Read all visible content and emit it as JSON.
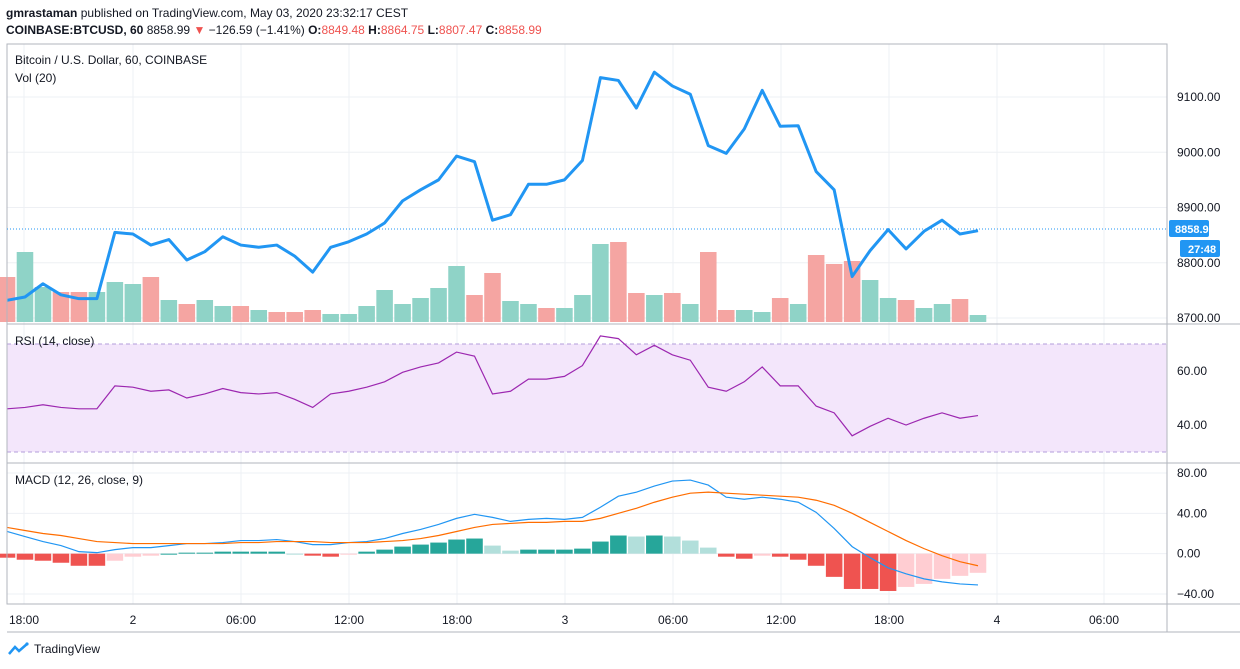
{
  "header": {
    "user": "gmrastaman",
    "published_text": "published on TradingView.com, May 03, 2020 23:32:17 CEST",
    "symbol": "COINBASE:BTCUSD, 60",
    "last": "8858.99",
    "change_arrow": "▼",
    "change": "−126.59 (−1.41%)",
    "o_label": "O:",
    "o_value": "8849.48",
    "h_label": "H:",
    "h_value": "8864.75",
    "l_label": "L:",
    "l_value": "8807.47",
    "c_label": "C:",
    "c_value": "8858.99"
  },
  "pane_labels": {
    "main_title": "Bitcoin / U.S. Dollar, 60, COINBASE",
    "vol": "Vol (20)",
    "rsi": "RSI (14, close)",
    "macd": "MACD (12, 26, close, 9)"
  },
  "price_tag": {
    "value": "8858.99",
    "countdown": "27:48"
  },
  "footer": {
    "brand": "TradingView"
  },
  "colors": {
    "price_line": "#2196f3",
    "up_volume": "#8fd3c7",
    "down_volume": "#f5a5a2",
    "rsi_line": "#9c27b0",
    "rsi_band": "#f3e6fb",
    "macd_line": "#2196f3",
    "signal_line": "#ff6d00",
    "hist_pos_strong": "#26a69a",
    "hist_pos_weak": "#b2dfdb",
    "hist_neg_strong": "#ef5350",
    "hist_neg_weak": "#ffcdd2",
    "tag_bg": "#2196f3"
  },
  "chart_data": [
    {
      "type": "line",
      "title": "Bitcoin / U.S. Dollar, 60, COINBASE",
      "time_axis_labels": [
        "18:00",
        "2",
        "06:00",
        "12:00",
        "18:00",
        "3",
        "06:00",
        "12:00",
        "18:00",
        "4",
        "06:00"
      ],
      "y_ticks": [
        "9100.00",
        "9000.00",
        "8900.00",
        "8800.00",
        "8700.00"
      ],
      "ylim": [
        8700,
        9100
      ],
      "last_price": 8858.99,
      "series": [
        {
          "name": "close",
          "values": [
            8732,
            8738,
            8762,
            8742,
            8735,
            8735,
            8855,
            8852,
            8832,
            8842,
            8805,
            8820,
            8847,
            8832,
            8828,
            8832,
            8812,
            8783,
            8828,
            8838,
            8852,
            8872,
            8912,
            8932,
            8950,
            8993,
            8983,
            8877,
            8887,
            8942,
            8942,
            8950,
            8985,
            9135,
            9130,
            9080,
            9145,
            9120,
            9105,
            9012,
            8998,
            9042,
            9112,
            9047,
            9048,
            8965,
            8932,
            8775,
            8822,
            8860,
            8825,
            8857,
            8877,
            8852,
            8858
          ]
        }
      ]
    },
    {
      "type": "bar",
      "title": "Vol (20)",
      "series": [
        {
          "name": "volume",
          "values": [
            45,
            70,
            35,
            30,
            30,
            30,
            40,
            38,
            45,
            22,
            18,
            22,
            16,
            16,
            12,
            10,
            10,
            12,
            8,
            8,
            16,
            32,
            18,
            24,
            34,
            56,
            27,
            49,
            21,
            18,
            14,
            14,
            27,
            78,
            80,
            29,
            27,
            29,
            18,
            70,
            12,
            12,
            10,
            24,
            18,
            67,
            58,
            61,
            42,
            24,
            22,
            14,
            18,
            23,
            7
          ],
          "direction": [
            "down",
            "up",
            "up",
            "down",
            "down",
            "up",
            "up",
            "up",
            "down",
            "up",
            "down",
            "up",
            "up",
            "down",
            "up",
            "down",
            "down",
            "down",
            "up",
            "up",
            "up",
            "up",
            "up",
            "up",
            "up",
            "up",
            "down",
            "down",
            "up",
            "up",
            "down",
            "up",
            "up",
            "up",
            "down",
            "down",
            "up",
            "down",
            "up",
            "down",
            "down",
            "up",
            "up",
            "down",
            "up",
            "down",
            "down",
            "down",
            "up",
            "up",
            "down",
            "up",
            "up",
            "down",
            "up"
          ]
        }
      ]
    },
    {
      "type": "line",
      "title": "RSI (14, close)",
      "y_ticks": [
        "60.00",
        "40.00"
      ],
      "ylim": [
        30,
        70
      ],
      "band": [
        30,
        70
      ],
      "series": [
        {
          "name": "RSI",
          "values": [
            46,
            46.5,
            47.5,
            46.5,
            46,
            46,
            54.5,
            54,
            52.5,
            53,
            50,
            51.5,
            53.5,
            52,
            51.5,
            52,
            49.5,
            46.5,
            51.5,
            52.5,
            54,
            56,
            59.5,
            61.5,
            63,
            67,
            65.5,
            51.5,
            52.5,
            57,
            57,
            58,
            62,
            73,
            72,
            66,
            69.5,
            66,
            64,
            54,
            52.5,
            56,
            61.5,
            54.5,
            54.5,
            47,
            44.5,
            36,
            39.5,
            42.5,
            40,
            42.5,
            44.5,
            42.5,
            43.5
          ]
        }
      ]
    },
    {
      "type": "line",
      "title": "MACD (12, 26, close, 9)",
      "y_ticks": [
        "80.00",
        "40.00",
        "0.00",
        "−40.00"
      ],
      "ylim": [
        -40,
        80
      ],
      "series": [
        {
          "name": "MACD",
          "values": [
            22,
            17,
            12,
            8,
            2,
            1,
            4,
            6,
            6,
            8,
            10,
            10,
            11,
            13,
            13,
            14,
            12,
            9,
            9,
            11,
            12,
            15,
            20,
            24,
            29,
            35,
            39,
            36,
            32,
            34,
            35,
            34,
            36,
            46,
            57,
            61,
            67,
            72,
            73,
            68,
            56,
            54,
            56,
            54,
            51,
            41,
            25,
            7,
            -4,
            -14,
            -20,
            -25,
            -28,
            -30,
            -31
          ]
        },
        {
          "name": "Signal",
          "values": [
            26,
            23,
            20,
            18,
            15,
            12,
            11,
            10,
            10,
            10,
            10,
            10,
            10,
            11,
            11,
            12,
            12,
            12,
            11,
            11,
            11,
            12,
            13,
            15,
            18,
            22,
            26,
            29,
            30,
            31,
            31,
            32,
            32,
            35,
            40,
            45,
            51,
            56,
            60,
            61,
            60,
            59,
            58,
            57,
            56,
            53,
            48,
            40,
            31,
            22,
            13,
            5,
            -2,
            -8,
            -12
          ]
        },
        {
          "name": "Histogram",
          "values": [
            -4,
            -6,
            -7,
            -9,
            -12,
            -12,
            -7,
            -3,
            -2,
            0,
            1,
            1,
            2,
            2,
            2,
            2,
            0,
            -2,
            -3,
            -1,
            2,
            4,
            7,
            9,
            11,
            14,
            15,
            8,
            3,
            4,
            4,
            4,
            5,
            12,
            18,
            17,
            18,
            17,
            13,
            6,
            -3,
            -5,
            -2,
            -3,
            -6,
            -12,
            -23,
            -35,
            -35,
            -37,
            -33,
            -30,
            -25,
            -22,
            -19
          ]
        }
      ]
    }
  ]
}
